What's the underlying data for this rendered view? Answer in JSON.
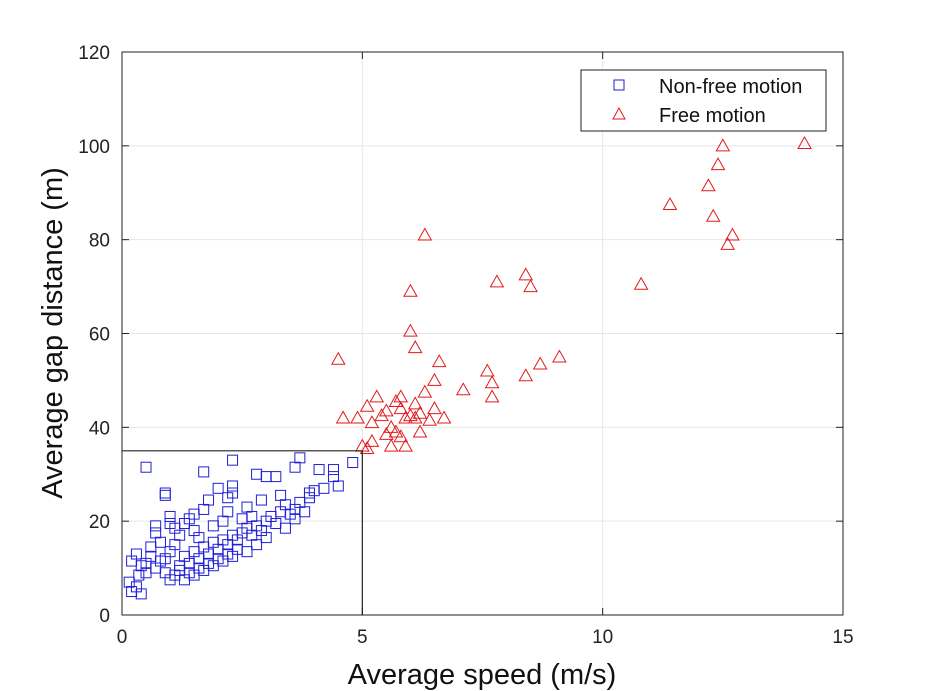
{
  "chart_data": {
    "type": "scatter",
    "title": "",
    "xlabel": "Average speed (m/s)",
    "ylabel": "Average gap distance (m)",
    "xlim": [
      0,
      15
    ],
    "ylim": [
      0,
      120
    ],
    "xticks": [
      0,
      5,
      10,
      15
    ],
    "yticks": [
      0,
      20,
      40,
      60,
      80,
      100,
      120
    ],
    "grid": true,
    "legend_position": "top-right",
    "threshold_box": {
      "x_max": 5,
      "y_max": 35
    },
    "series": [
      {
        "name": "Non-free motion",
        "marker": "square",
        "color": "#1f1fd6",
        "points": [
          [
            0.5,
            31.5
          ],
          [
            3.7,
            33.5
          ],
          [
            2.3,
            33.0
          ],
          [
            1.7,
            30.5
          ],
          [
            3.0,
            29.5
          ],
          [
            2.8,
            30.0
          ],
          [
            3.2,
            29.5
          ],
          [
            3.6,
            31.5
          ],
          [
            4.1,
            31.0
          ],
          [
            4.4,
            31.0
          ],
          [
            4.8,
            32.5
          ],
          [
            0.9,
            26.0
          ],
          [
            0.9,
            25.5
          ],
          [
            2.0,
            27.0
          ],
          [
            2.3,
            27.5
          ],
          [
            2.3,
            26.0
          ],
          [
            2.9,
            24.5
          ],
          [
            3.3,
            25.5
          ],
          [
            3.9,
            26.0
          ],
          [
            4.2,
            27.0
          ],
          [
            4.4,
            29.5
          ],
          [
            4.5,
            27.5
          ],
          [
            3.4,
            23.5
          ],
          [
            3.6,
            22.5
          ],
          [
            2.6,
            23.0
          ],
          [
            2.2,
            25.0
          ],
          [
            1.0,
            21.0
          ],
          [
            1.0,
            19.5
          ],
          [
            0.7,
            19.0
          ],
          [
            0.7,
            17.5
          ],
          [
            0.2,
            11.5
          ],
          [
            0.15,
            7.0
          ],
          [
            0.2,
            5.0
          ],
          [
            0.3,
            6.0
          ],
          [
            0.4,
            4.5
          ],
          [
            0.35,
            8.5
          ],
          [
            0.3,
            13.0
          ],
          [
            0.5,
            9.0
          ],
          [
            0.5,
            11.0
          ],
          [
            0.7,
            10.0
          ],
          [
            0.9,
            12.0
          ],
          [
            0.9,
            9.0
          ],
          [
            1.1,
            8.5
          ],
          [
            1.2,
            10.5
          ],
          [
            1.3,
            12.5
          ],
          [
            1.4,
            11.0
          ],
          [
            1.5,
            13.5
          ],
          [
            1.6,
            12.0
          ],
          [
            1.7,
            14.5
          ],
          [
            1.8,
            13.0
          ],
          [
            1.9,
            15.5
          ],
          [
            2.0,
            14.0
          ],
          [
            2.1,
            16.0
          ],
          [
            2.2,
            15.0
          ],
          [
            2.3,
            17.0
          ],
          [
            2.4,
            16.0
          ],
          [
            2.5,
            17.5
          ],
          [
            2.6,
            18.5
          ],
          [
            2.7,
            17.0
          ],
          [
            2.8,
            19.0
          ],
          [
            2.9,
            18.0
          ],
          [
            3.0,
            20.0
          ],
          [
            3.1,
            21.0
          ],
          [
            3.2,
            19.5
          ],
          [
            3.3,
            22.0
          ],
          [
            3.5,
            21.5
          ],
          [
            3.7,
            24.0
          ],
          [
            3.9,
            25.0
          ],
          [
            4.0,
            26.5
          ],
          [
            1.0,
            13.5
          ],
          [
            1.1,
            15.0
          ],
          [
            1.2,
            17.0
          ],
          [
            1.3,
            19.5
          ],
          [
            1.4,
            20.5
          ],
          [
            1.5,
            18.0
          ],
          [
            1.6,
            16.5
          ],
          [
            1.2,
            9.5
          ],
          [
            1.4,
            9.0
          ],
          [
            1.6,
            10.0
          ],
          [
            1.8,
            11.0
          ],
          [
            2.0,
            12.0
          ],
          [
            2.2,
            13.0
          ],
          [
            2.4,
            14.0
          ],
          [
            1.5,
            21.5
          ],
          [
            1.7,
            22.5
          ],
          [
            1.9,
            19.0
          ],
          [
            2.1,
            20.0
          ],
          [
            2.5,
            20.5
          ],
          [
            0.6,
            14.5
          ],
          [
            0.8,
            15.5
          ],
          [
            0.8,
            11.5
          ],
          [
            1.0,
            7.5
          ],
          [
            1.3,
            7.5
          ],
          [
            1.5,
            8.5
          ],
          [
            1.7,
            9.5
          ],
          [
            1.9,
            10.5
          ],
          [
            2.1,
            11.5
          ],
          [
            2.3,
            12.5
          ],
          [
            2.6,
            13.5
          ],
          [
            2.8,
            15.0
          ],
          [
            3.0,
            16.5
          ],
          [
            3.4,
            18.5
          ],
          [
            3.6,
            20.5
          ],
          [
            3.8,
            22.0
          ],
          [
            0.4,
            10.5
          ],
          [
            0.6,
            12.5
          ],
          [
            1.1,
            18.5
          ],
          [
            1.8,
            24.5
          ],
          [
            2.2,
            22.0
          ],
          [
            2.7,
            21.0
          ]
        ]
      },
      {
        "name": "Free motion",
        "marker": "triangle",
        "color": "#e31a1c",
        "points": [
          [
            4.5,
            54.5
          ],
          [
            4.6,
            42.0
          ],
          [
            4.9,
            42.0
          ],
          [
            5.0,
            36.0
          ],
          [
            5.1,
            35.5
          ],
          [
            5.1,
            44.5
          ],
          [
            5.2,
            37.0
          ],
          [
            5.2,
            41.0
          ],
          [
            5.3,
            46.5
          ],
          [
            5.5,
            38.5
          ],
          [
            5.5,
            43.5
          ],
          [
            5.6,
            40.0
          ],
          [
            5.6,
            36.0
          ],
          [
            5.7,
            39.0
          ],
          [
            5.7,
            45.5
          ],
          [
            5.8,
            46.5
          ],
          [
            5.8,
            44.0
          ],
          [
            5.9,
            42.0
          ],
          [
            5.9,
            36.0
          ],
          [
            6.0,
            69.0
          ],
          [
            6.0,
            60.5
          ],
          [
            6.1,
            57.0
          ],
          [
            6.1,
            42.0
          ],
          [
            6.2,
            43.0
          ],
          [
            6.2,
            39.0
          ],
          [
            6.3,
            81.0
          ],
          [
            6.3,
            47.5
          ],
          [
            6.4,
            41.5
          ],
          [
            6.5,
            50.0
          ],
          [
            6.5,
            44.0
          ],
          [
            6.6,
            54.0
          ],
          [
            6.7,
            42.0
          ],
          [
            7.1,
            48.0
          ],
          [
            7.6,
            52.0
          ],
          [
            7.7,
            49.5
          ],
          [
            7.7,
            46.5
          ],
          [
            7.8,
            71.0
          ],
          [
            8.4,
            72.5
          ],
          [
            8.4,
            51.0
          ],
          [
            8.5,
            70.0
          ],
          [
            8.7,
            53.5
          ],
          [
            9.1,
            55.0
          ],
          [
            10.8,
            70.5
          ],
          [
            11.4,
            87.5
          ],
          [
            12.2,
            91.5
          ],
          [
            12.3,
            85.0
          ],
          [
            12.4,
            96.0
          ],
          [
            12.5,
            100.0
          ],
          [
            12.6,
            79.0
          ],
          [
            12.7,
            81.0
          ],
          [
            14.2,
            100.5
          ],
          [
            6.0,
            42.5
          ],
          [
            6.1,
            45.0
          ],
          [
            5.4,
            42.5
          ],
          [
            5.8,
            38.0
          ]
        ]
      }
    ]
  }
}
